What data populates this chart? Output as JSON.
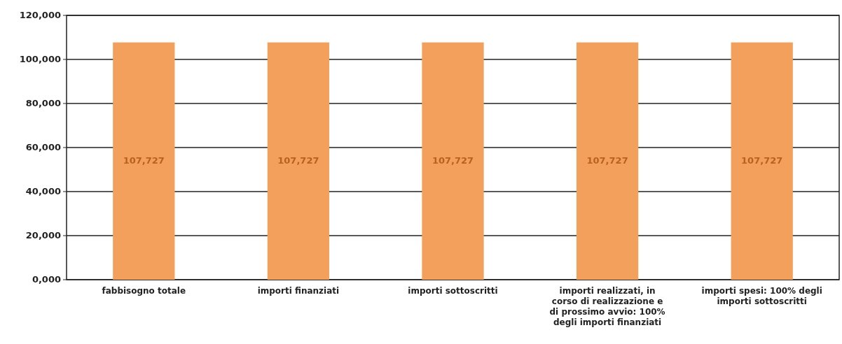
{
  "chart_data": {
    "type": "bar",
    "categories": [
      "fabbisogno totale",
      "importi finanziati",
      "importi sottoscritti",
      "importi realizzati, in corso di realizzazione e di prossimo avvio: 100% degli importi finanziati",
      "importi spesi: 100% degli importi sottoscritti"
    ],
    "values": [
      107727,
      107727,
      107727,
      107727,
      107727
    ],
    "value_labels": [
      "107,727",
      "107,727",
      "107,727",
      "107,727",
      "107,727"
    ],
    "color": "#f2a05c",
    "ylim": [
      0,
      120000
    ],
    "yticks": [
      {
        "value": 0,
        "label": "0,000"
      },
      {
        "value": 20000,
        "label": "20,000"
      },
      {
        "value": 40000,
        "label": "40,000"
      },
      {
        "value": 60000,
        "label": "60,000"
      },
      {
        "value": 80000,
        "label": "80,000"
      },
      {
        "value": 100000,
        "label": "100,000"
      },
      {
        "value": 120000,
        "label": "120,000"
      }
    ],
    "grid": "y"
  }
}
